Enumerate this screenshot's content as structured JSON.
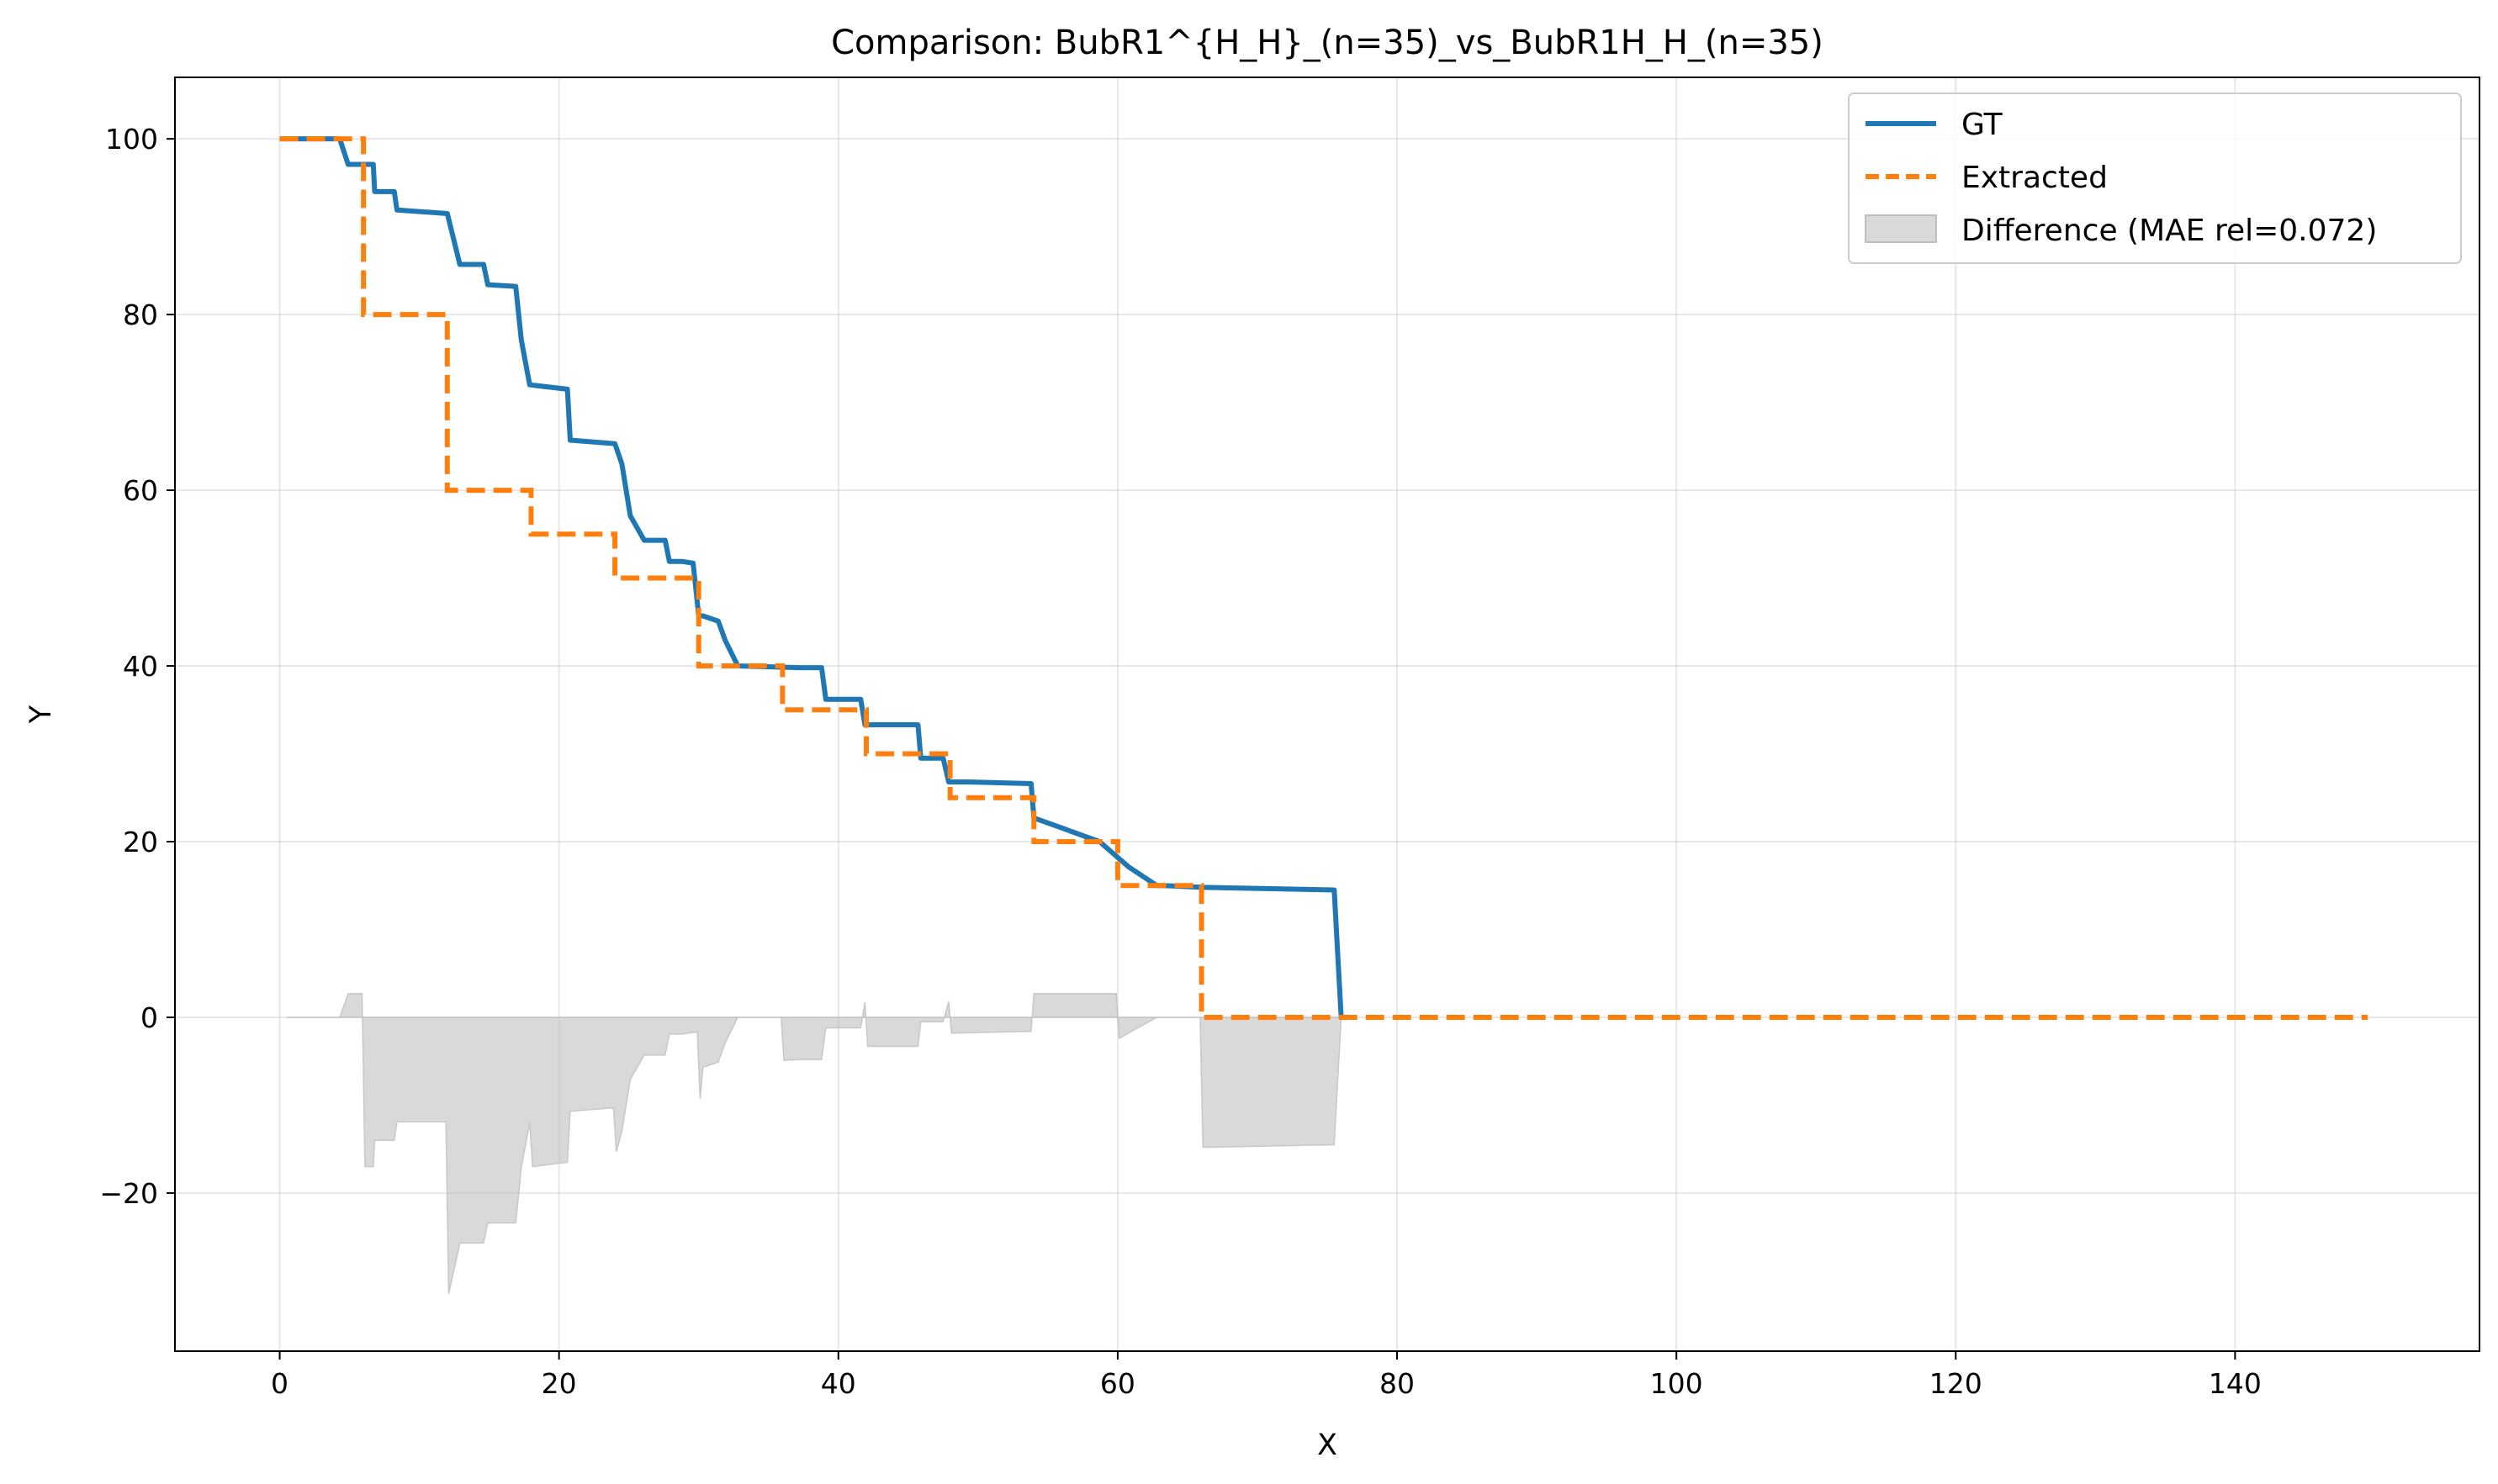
{
  "chart_data": {
    "type": "line",
    "title": "Comparison: BubR1^{H_H}_(n=35)_vs_BubR1H_H_(n=35)",
    "xlabel": "X",
    "ylabel": "Y",
    "xlim": [
      -7.5,
      157.5
    ],
    "ylim": [
      -38,
      107
    ],
    "xticks": [
      0,
      20,
      40,
      60,
      80,
      100,
      120,
      140
    ],
    "yticks": [
      -20,
      0,
      20,
      40,
      60,
      80,
      100
    ],
    "xtick_labels": [
      "0",
      "20",
      "40",
      "60",
      "80",
      "100",
      "120",
      "140"
    ],
    "ytick_labels": [
      "−20",
      "0",
      "20",
      "40",
      "60",
      "80",
      "100"
    ],
    "grid": true,
    "legend_position": "top-right",
    "colors": {
      "gt": "#1f77b4",
      "extracted": "#ff7f0e",
      "difference": "#bfbfbf"
    },
    "series": [
      {
        "name": "GT",
        "style": "solid",
        "x": [
          0,
          2.3,
          4.3,
          4.9,
          6.7,
          6.8,
          8.2,
          8.4,
          12,
          12.9,
          14.6,
          14.9,
          16.9,
          17.3,
          17.9,
          20.6,
          20.8,
          24,
          24.5,
          25.1,
          26.1,
          27.6,
          27.9,
          28.8,
          29.6,
          30,
          30.3,
          31.4,
          31.9,
          32.8,
          37.3,
          38.8,
          39.1,
          41.6,
          41.9,
          45.7,
          45.9,
          47.5,
          47.9,
          49.3,
          53.8,
          54,
          58.7,
          60.8,
          62.8,
          63.2,
          66.1,
          75.5,
          76
        ],
        "y": [
          100,
          100,
          100,
          97.1,
          97.1,
          94,
          94,
          91.9,
          91.5,
          85.7,
          85.7,
          83.4,
          83.2,
          77.1,
          72,
          71.5,
          65.7,
          65.3,
          63,
          57.1,
          54.3,
          54.3,
          51.9,
          51.9,
          51.7,
          45.7,
          45.7,
          45.1,
          42.9,
          40,
          39.8,
          39.8,
          36.2,
          36.2,
          33.3,
          33.3,
          29.5,
          29.5,
          26.8,
          26.8,
          26.6,
          22.7,
          20,
          17.1,
          15,
          15,
          14.8,
          14.5,
          0
        ]
      },
      {
        "name": "Extracted",
        "style": "dashed",
        "x": [
          0,
          6,
          6,
          12,
          12,
          18,
          18,
          24,
          24,
          30,
          30,
          36,
          36,
          42,
          42,
          48,
          48,
          54,
          54,
          60,
          60,
          66,
          66,
          149.5
        ],
        "y": [
          100,
          100,
          80,
          80,
          60,
          60,
          55,
          55,
          50,
          50,
          40,
          40,
          35,
          35,
          30,
          30,
          25,
          25,
          20,
          20,
          15,
          15,
          0,
          0
        ]
      }
    ],
    "difference": {
      "name": "Difference (MAE rel=0.072)",
      "x": [
        0.5,
        4.3,
        4.9,
        5.9,
        6.1,
        6.7,
        6.8,
        8.2,
        8.4,
        11.9,
        12.1,
        12.9,
        14.6,
        14.9,
        16.9,
        17.3,
        17.9,
        18.1,
        20.6,
        20.8,
        23.9,
        24.1,
        24.5,
        25.1,
        26.1,
        27.6,
        27.9,
        28.8,
        29.6,
        29.9,
        30.1,
        30.3,
        31.4,
        31.9,
        32.8,
        35.9,
        36.1,
        37.3,
        38.8,
        39.1,
        41.6,
        41.9,
        42.1,
        45.7,
        45.9,
        47.5,
        47.9,
        48.1,
        53.8,
        54,
        59.9,
        60.1,
        62.8,
        63.2,
        65.9,
        66.1,
        75.5,
        76
      ],
      "y": [
        0,
        0,
        2.7,
        2.7,
        -17,
        -17,
        -14,
        -14,
        -11.9,
        -11.9,
        -31.5,
        -25.7,
        -25.7,
        -23.4,
        -23.4,
        -17.1,
        -12,
        -17,
        -16.5,
        -10.7,
        -10.3,
        -15.3,
        -13,
        -7.1,
        -4.3,
        -4.3,
        -1.9,
        -1.9,
        -1.7,
        -1.7,
        -9.3,
        -5.7,
        -5.1,
        -2.9,
        0,
        0,
        -4.9,
        -4.8,
        -4.8,
        -1.2,
        -1.2,
        1.7,
        -3.3,
        -3.3,
        -0.5,
        -0.5,
        1.8,
        -1.8,
        -1.6,
        2.7,
        2.7,
        -2.4,
        0,
        0,
        0,
        -14.8,
        -14.5,
        0
      ]
    }
  }
}
